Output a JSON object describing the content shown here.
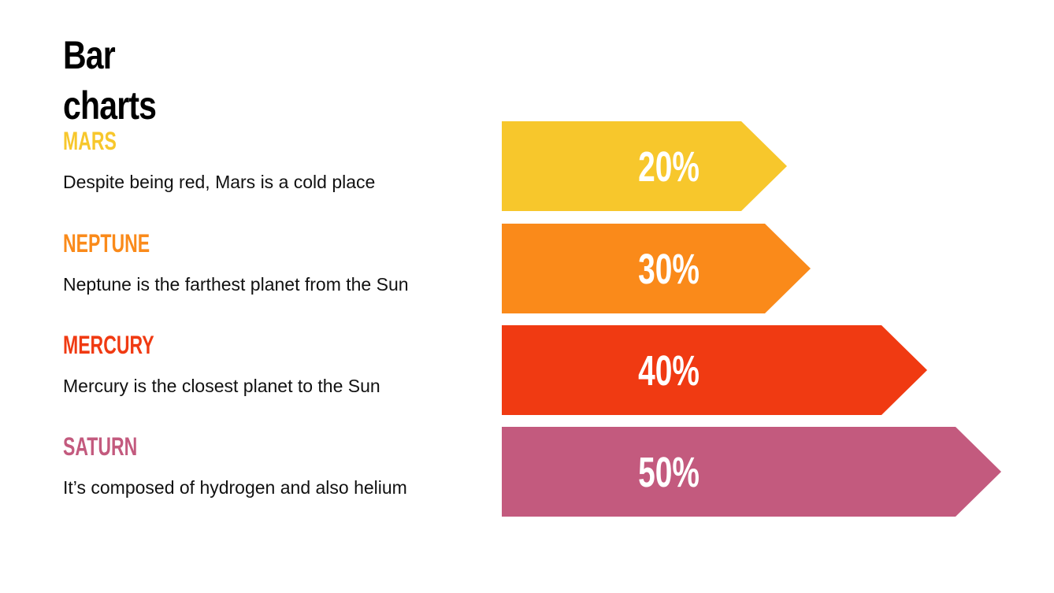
{
  "title_line1": "Bar",
  "title_line2": "charts",
  "chart_data": {
    "type": "bar",
    "orientation": "horizontal",
    "categories": [
      "MARS",
      "NEPTUNE",
      "MERCURY",
      "SATURN"
    ],
    "values": [
      20,
      30,
      40,
      50
    ],
    "value_labels": [
      "20%",
      "30%",
      "40%",
      "50%"
    ],
    "descriptions": [
      "Despite being red, Mars is a cold place",
      "Neptune is the farthest planet from the Sun",
      "Mercury is the closest planet to the Sun",
      "It’s composed of hydrogen and also helium"
    ],
    "colors": [
      "#F7C72C",
      "#FA8A1A",
      "#F03A12",
      "#C35A7E"
    ],
    "bar_shape": "arrow",
    "grid": false
  }
}
